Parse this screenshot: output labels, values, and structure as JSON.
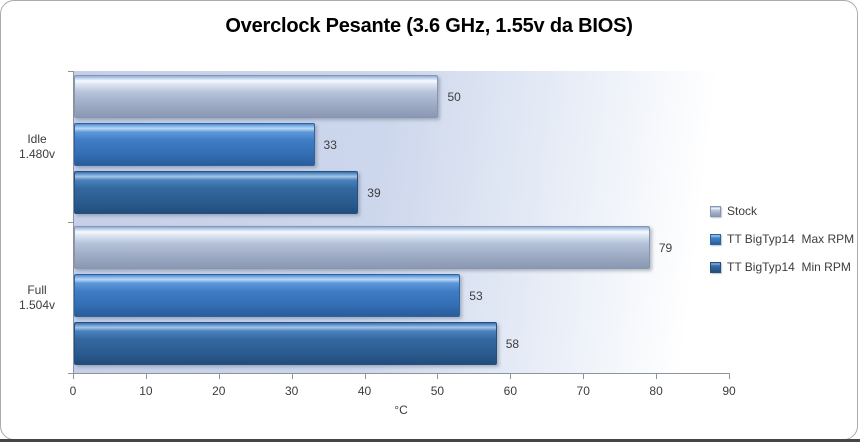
{
  "frame": {
    "background": "#ffffff",
    "border_color": "#ababab",
    "bottom_shadow_color": "#454545"
  },
  "colors": {
    "plot_gradient_left": "#c9d3ea",
    "plot_gradient_right": "#ffffff",
    "axis_line": "#8e949c",
    "text": "#3d3d3d",
    "title_text": "#000000"
  },
  "chart_data": {
    "type": "bar",
    "orientation": "horizontal",
    "title": "Overclock Pesante (3.6 GHz, 1.55v da BIOS)",
    "categories": [
      {
        "label": "Idle",
        "sublabel": "1.480v"
      },
      {
        "label": "Full",
        "sublabel": "1.504v"
      }
    ],
    "series": [
      {
        "name": "Stock",
        "values": [
          50,
          79
        ],
        "color": "#aebfd9",
        "css_class": "s0"
      },
      {
        "name": "TT BigTyp14  Max RPM",
        "values": [
          33,
          53
        ],
        "color": "#3d7ac0",
        "css_class": "s1"
      },
      {
        "name": "TT BigTyp14  Min RPM",
        "values": [
          39,
          58
        ],
        "color": "#2d6096",
        "css_class": "s2"
      }
    ],
    "data_labels": [
      [
        50,
        33,
        39
      ],
      [
        79,
        53,
        58
      ]
    ],
    "xlabel": "°C",
    "xlim": [
      0,
      90
    ],
    "xticks": [
      0,
      10,
      20,
      30,
      40,
      50,
      60,
      70,
      80,
      90
    ],
    "grid": false,
    "legend_position": "right",
    "legend_entries": [
      "Stock",
      "TT BigTyp14  Max RPM",
      "TT BigTyp14  Min RPM"
    ]
  }
}
